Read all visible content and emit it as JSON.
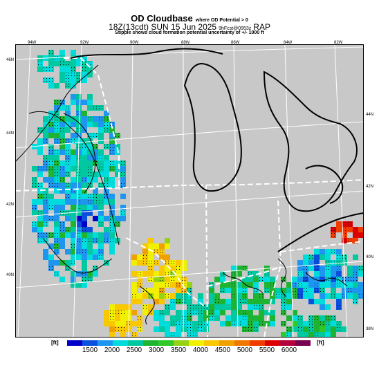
{
  "title": {
    "main": "OD Cloudbase",
    "main_suffix": "where OD Potential > 0",
    "line2_left": "18Z(13cdt) SUN 15 Jun 2025",
    "line2_small": "9hFcst@0953z",
    "line2_model": "RAP",
    "line3": "Stipple shows cloud formation potential uncertainty of +/- 1000 ft"
  },
  "map": {
    "background": "#c8c8c8",
    "lon_labels": [
      "94W",
      "92W",
      "90W",
      "88W",
      "86W",
      "84W",
      "82W"
    ],
    "lat_labels_left": [
      "46N",
      "44N",
      "42N",
      "40N"
    ],
    "lat_labels_right": [
      "44N",
      "42N",
      "40N",
      "38N"
    ]
  },
  "colorbar": {
    "unit_left": "[ft]",
    "unit_right": "[ft]",
    "colors": [
      "#0000c8",
      "#0a50dc",
      "#1e96f0",
      "#00dcdc",
      "#00c8a0",
      "#1eb432",
      "#32c828",
      "#96d214",
      "#f0f000",
      "#fac800",
      "#f0a000",
      "#f07800",
      "#f03c00",
      "#dc0000",
      "#b4003c",
      "#780050"
    ],
    "ticks": [
      "1500",
      "2000",
      "2500",
      "3000",
      "3500",
      "4000",
      "4500",
      "5000",
      "5500",
      "6000"
    ]
  }
}
